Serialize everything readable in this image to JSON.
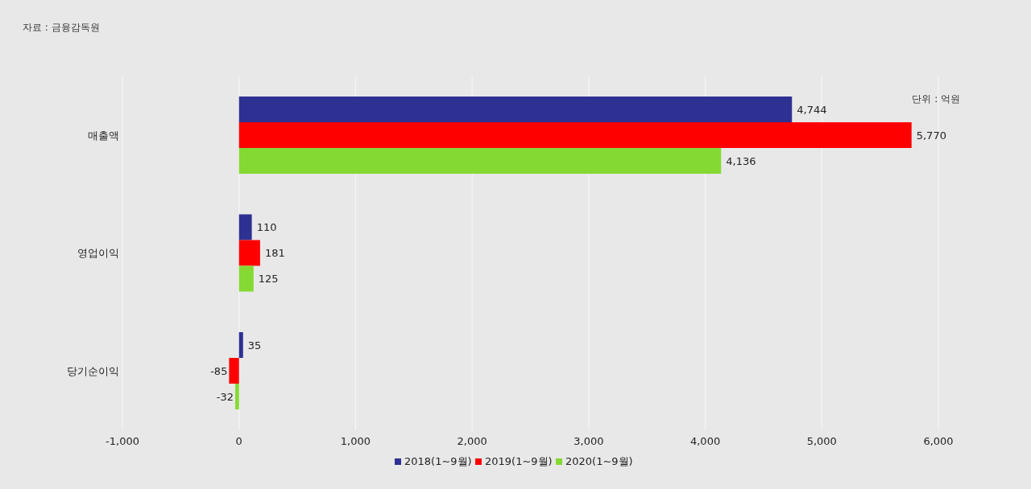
{
  "chart_data": {
    "type": "bar",
    "orientation": "horizontal",
    "categories": [
      "매출액",
      "영업이익",
      "당기순이익"
    ],
    "series": [
      {
        "name": "2018(1~9월)",
        "color": "#2e3192",
        "values": [
          4744,
          110,
          35
        ],
        "value_labels": [
          "4,744",
          "110",
          "35"
        ]
      },
      {
        "name": "2019(1~9월)",
        "color": "#ff0000",
        "values": [
          5770,
          181,
          -85
        ],
        "value_labels": [
          "5,770",
          "181",
          "-85"
        ]
      },
      {
        "name": "2020(1~9월)",
        "color": "#84d932",
        "values": [
          4136,
          125,
          -32
        ],
        "value_labels": [
          "4,136",
          "125",
          "-32"
        ]
      }
    ],
    "xlim": [
      -1000,
      6000
    ],
    "xticks": [
      {
        "value": -1000,
        "label": "-1,000"
      },
      0,
      {
        "value": 1000,
        "label": "1,000"
      },
      {
        "value": 2000,
        "label": "2,000"
      },
      {
        "value": 3000,
        "label": "3,000"
      },
      {
        "value": 4000,
        "label": "4,000"
      },
      {
        "value": 5000,
        "label": "5,000"
      },
      {
        "value": 6000,
        "label": "6,000"
      }
    ],
    "grid": "x",
    "legend": "bottom",
    "annotations": [
      "자료 : 금융감독원",
      "단위 : 억원"
    ]
  }
}
